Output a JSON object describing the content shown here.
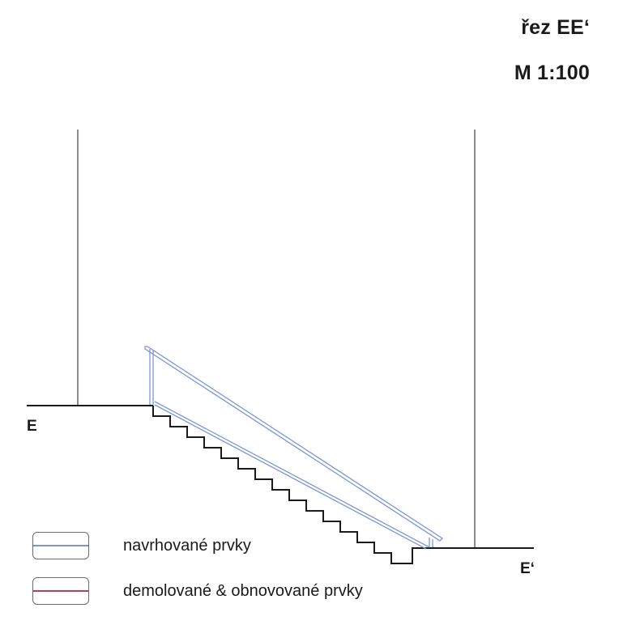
{
  "title": {
    "section": "řez EE‘",
    "scale": "M 1:100"
  },
  "section_marks": {
    "left": "E",
    "right": "E‘"
  },
  "legend": [
    {
      "label": "navrhované prvky",
      "color": "#7f94d6"
    },
    {
      "label": "demolované & obnovované prvky",
      "color": "#b6415c"
    }
  ],
  "colors": {
    "existing": "#1a1a1a",
    "proposed": "#7f94d6",
    "demolished": "#b6415c"
  }
}
